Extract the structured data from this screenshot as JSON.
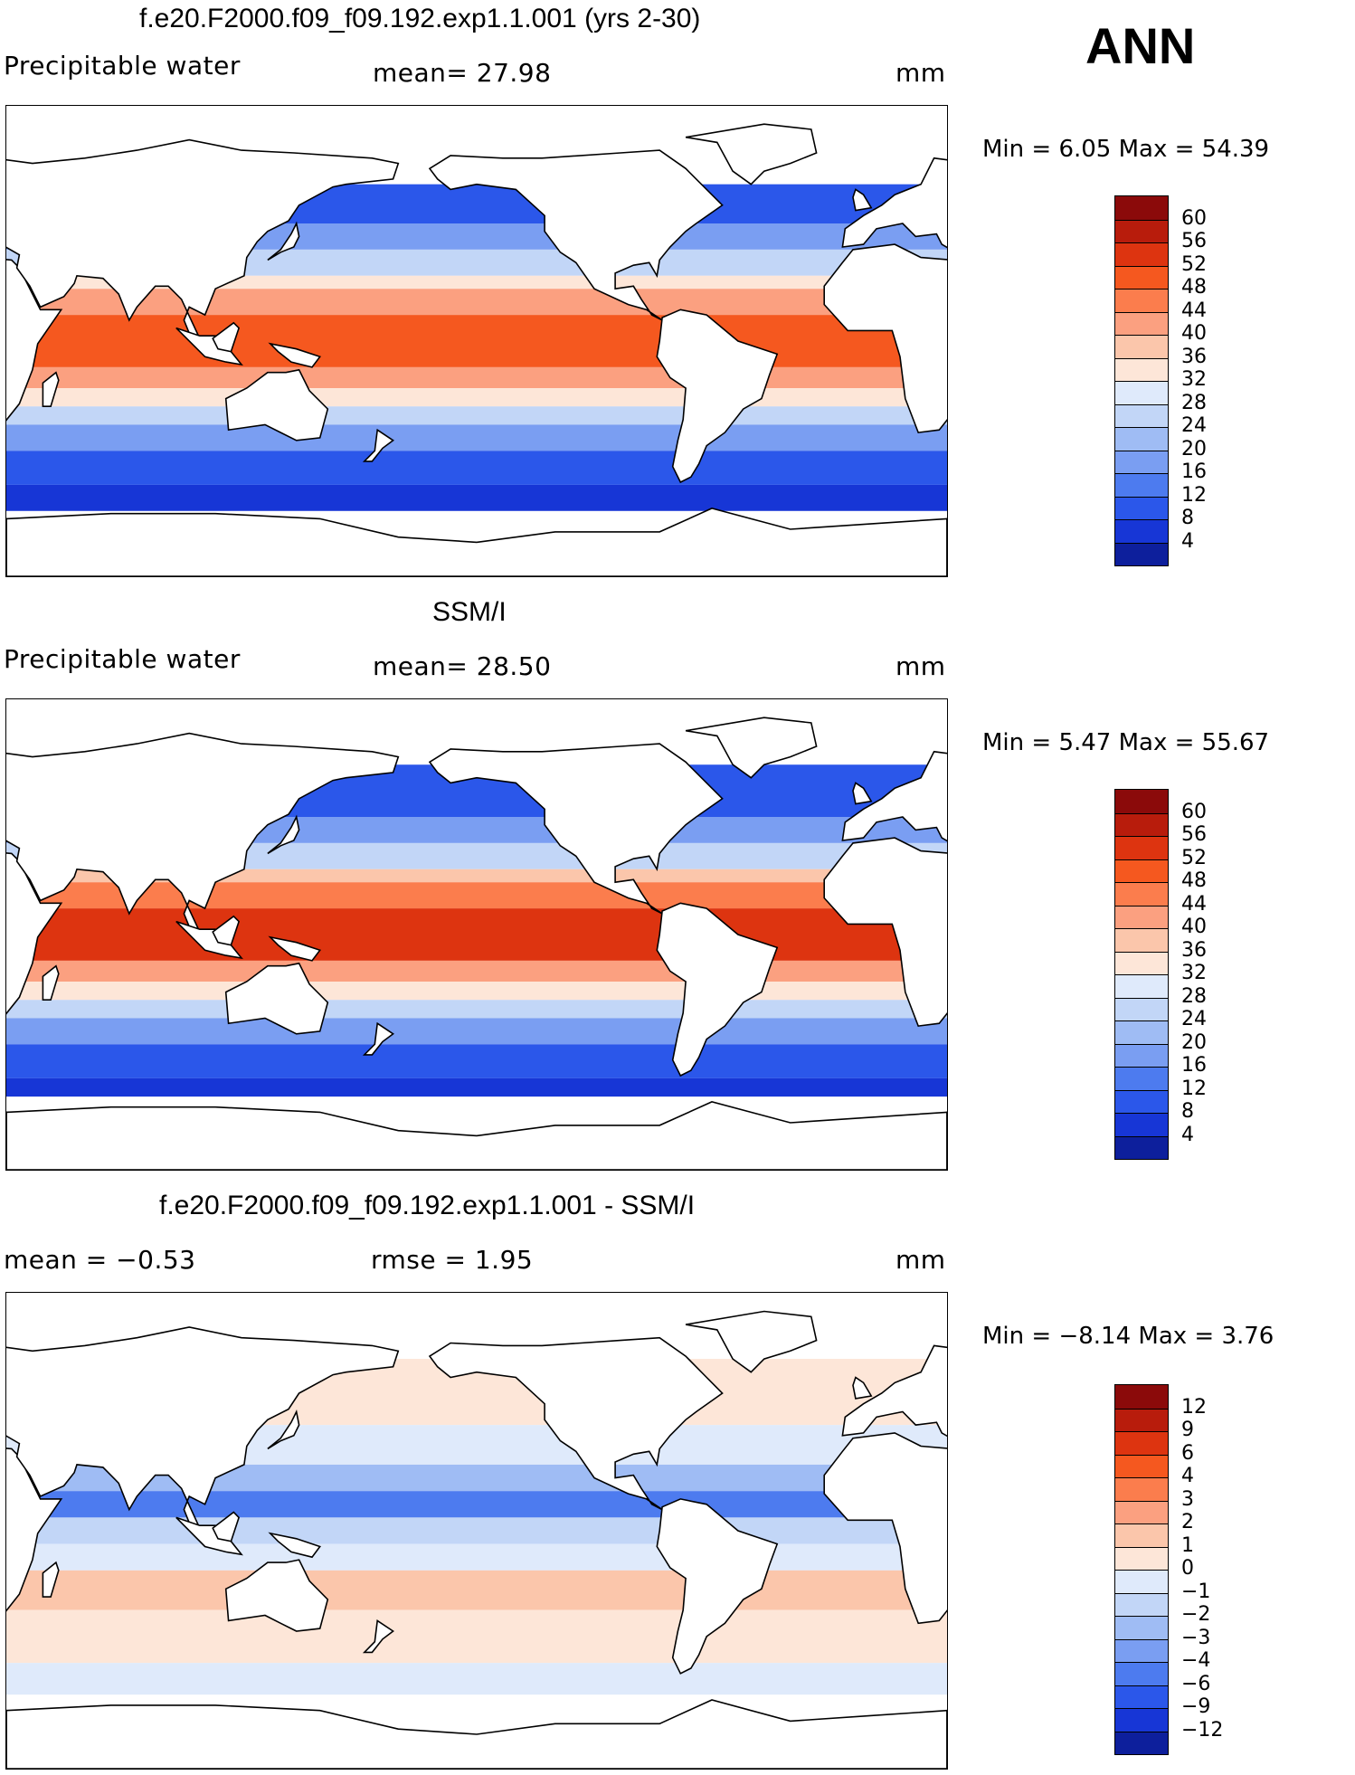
{
  "season": "ANN",
  "panels": [
    {
      "title": "f.e20.F2000.f09_f09.192.exp1.1.001 (yrs 2-30)",
      "left_label": "Precipitable water",
      "mid_label": "mean=   27.98",
      "units": "mm",
      "minmax": "Min =    6.05  Max =    54.39",
      "colorbar": {
        "labels": [
          "60",
          "56",
          "52",
          "48",
          "44",
          "40",
          "36",
          "32",
          "28",
          "24",
          "20",
          "16",
          "12",
          "8",
          "4"
        ],
        "colors": [
          "#8b0a0a",
          "#b81c0c",
          "#dd3410",
          "#f5581f",
          "#fb7d4d",
          "#fba080",
          "#fbc6ab",
          "#fde6d8",
          "#dfeafb",
          "#c2d6f7",
          "#9fbcf4",
          "#7a9ef2",
          "#4d7bef",
          "#2b57ea",
          "#1736d6",
          "#0d1f9c"
        ]
      },
      "ocean": [
        {
          "lat_from": 60,
          "lat_to": 45,
          "color": "#2b57ea"
        },
        {
          "lat_from": 45,
          "lat_to": 35,
          "color": "#7a9ef2"
        },
        {
          "lat_from": 35,
          "lat_to": 25,
          "color": "#c2d6f7"
        },
        {
          "lat_from": 25,
          "lat_to": 20,
          "color": "#fde6d8"
        },
        {
          "lat_from": 20,
          "lat_to": 10,
          "color": "#fba080"
        },
        {
          "lat_from": 10,
          "lat_to": -10,
          "color": "#f5581f"
        },
        {
          "lat_from": -10,
          "lat_to": -18,
          "color": "#fba080"
        },
        {
          "lat_from": -18,
          "lat_to": -25,
          "color": "#fde6d8"
        },
        {
          "lat_from": -25,
          "lat_to": -32,
          "color": "#c2d6f7"
        },
        {
          "lat_from": -32,
          "lat_to": -42,
          "color": "#7a9ef2"
        },
        {
          "lat_from": -42,
          "lat_to": -55,
          "color": "#2b57ea"
        },
        {
          "lat_from": -55,
          "lat_to": -65,
          "color": "#1736d6"
        }
      ]
    },
    {
      "title": "SSM/I",
      "left_label": "Precipitable water",
      "mid_label": "mean=   28.50",
      "units": "mm",
      "minmax": "Min =    5.47  Max =    55.67",
      "colorbar": {
        "labels": [
          "60",
          "56",
          "52",
          "48",
          "44",
          "40",
          "36",
          "32",
          "28",
          "24",
          "20",
          "16",
          "12",
          "8",
          "4"
        ],
        "colors": [
          "#8b0a0a",
          "#b81c0c",
          "#dd3410",
          "#f5581f",
          "#fb7d4d",
          "#fba080",
          "#fbc6ab",
          "#fde6d8",
          "#dfeafb",
          "#c2d6f7",
          "#9fbcf4",
          "#7a9ef2",
          "#4d7bef",
          "#2b57ea",
          "#1736d6",
          "#0d1f9c"
        ]
      },
      "ocean": [
        {
          "lat_from": 65,
          "lat_to": 45,
          "color": "#2b57ea"
        },
        {
          "lat_from": 45,
          "lat_to": 35,
          "color": "#7a9ef2"
        },
        {
          "lat_from": 35,
          "lat_to": 25,
          "color": "#c2d6f7"
        },
        {
          "lat_from": 25,
          "lat_to": 20,
          "color": "#fbc6ab"
        },
        {
          "lat_from": 20,
          "lat_to": 10,
          "color": "#fb7d4d"
        },
        {
          "lat_from": 10,
          "lat_to": -10,
          "color": "#dd3410"
        },
        {
          "lat_from": -10,
          "lat_to": -18,
          "color": "#fba080"
        },
        {
          "lat_from": -18,
          "lat_to": -25,
          "color": "#fde6d8"
        },
        {
          "lat_from": -25,
          "lat_to": -32,
          "color": "#c2d6f7"
        },
        {
          "lat_from": -32,
          "lat_to": -42,
          "color": "#7a9ef2"
        },
        {
          "lat_from": -42,
          "lat_to": -55,
          "color": "#2b57ea"
        },
        {
          "lat_from": -55,
          "lat_to": -62,
          "color": "#1736d6"
        }
      ]
    },
    {
      "title": "f.e20.F2000.f09_f09.192.exp1.1.001 - SSM/I",
      "left_label": "mean =   −0.53",
      "mid_label": "rmse =    1.95",
      "units": "mm",
      "minmax": "Min =   −8.14  Max =     3.76",
      "colorbar": {
        "labels": [
          "12",
          "9",
          "6",
          "4",
          "3",
          "2",
          "1",
          "0",
          "−1",
          "−2",
          "−3",
          "−4",
          "−6",
          "−9",
          "−12"
        ],
        "colors": [
          "#8b0a0a",
          "#b81c0c",
          "#dd3410",
          "#f5581f",
          "#fb7d4d",
          "#fba080",
          "#fbc6ab",
          "#fde6d8",
          "#dfeafb",
          "#c2d6f7",
          "#9fbcf4",
          "#7a9ef2",
          "#4d7bef",
          "#2b57ea",
          "#1736d6",
          "#0d1f9c"
        ]
      },
      "ocean": [
        {
          "lat_from": 65,
          "lat_to": 40,
          "color": "#fde6d8"
        },
        {
          "lat_from": 40,
          "lat_to": 25,
          "color": "#dfeafb"
        },
        {
          "lat_from": 25,
          "lat_to": 15,
          "color": "#9fbcf4"
        },
        {
          "lat_from": 15,
          "lat_to": 5,
          "color": "#4d7bef"
        },
        {
          "lat_from": 5,
          "lat_to": -5,
          "color": "#c2d6f7"
        },
        {
          "lat_from": -5,
          "lat_to": -15,
          "color": "#dfeafb"
        },
        {
          "lat_from": -15,
          "lat_to": -30,
          "color": "#fbc6ab"
        },
        {
          "lat_from": -30,
          "lat_to": -50,
          "color": "#fde6d8"
        },
        {
          "lat_from": -50,
          "lat_to": -62,
          "color": "#dfeafb"
        }
      ]
    }
  ]
}
